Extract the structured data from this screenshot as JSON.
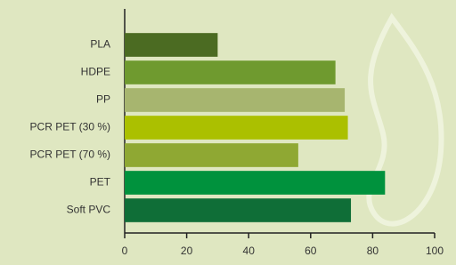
{
  "chart_data": {
    "type": "barh",
    "categories": [
      "PLA",
      "HDPE",
      "PP",
      "PCR PET (30 %)",
      "PCR PET (70 %)",
      "PET",
      "Soft PVC"
    ],
    "values": [
      30,
      68,
      71,
      72,
      56,
      84,
      73
    ],
    "colors": [
      "#4b6b22",
      "#6f9a2f",
      "#a7b56f",
      "#abc000",
      "#8fa833",
      "#00923d",
      "#0f6e37"
    ],
    "xlim": [
      0,
      100
    ],
    "xticks": [
      0,
      20,
      40,
      60,
      80,
      100
    ],
    "grid": false
  }
}
